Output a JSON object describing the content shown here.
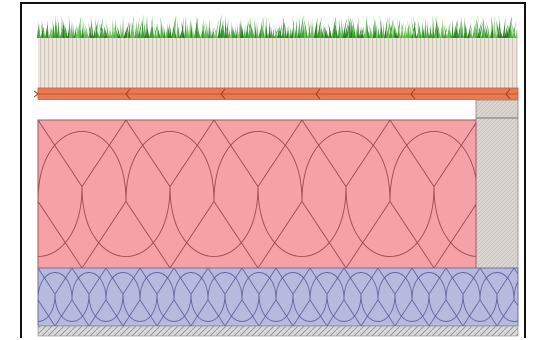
{
  "diagram": {
    "type": "green-roof-build-up-section",
    "layers": [
      {
        "name": "vegetation",
        "color": "#4aa33a"
      },
      {
        "name": "substrate",
        "color": "#ede4dc"
      },
      {
        "name": "drainage-membrane",
        "color": "#e87a52"
      },
      {
        "name": "air-gap",
        "color": "#ffffff"
      },
      {
        "name": "thermal-insulation",
        "color": "#f5a1a6"
      },
      {
        "name": "wall-end-block",
        "color": "#d9d3d0"
      },
      {
        "name": "acoustic-insulation",
        "color": "#b8b9df"
      },
      {
        "name": "base-layer",
        "color": "#cfcfcf"
      }
    ],
    "arrow_direction": "left"
  }
}
